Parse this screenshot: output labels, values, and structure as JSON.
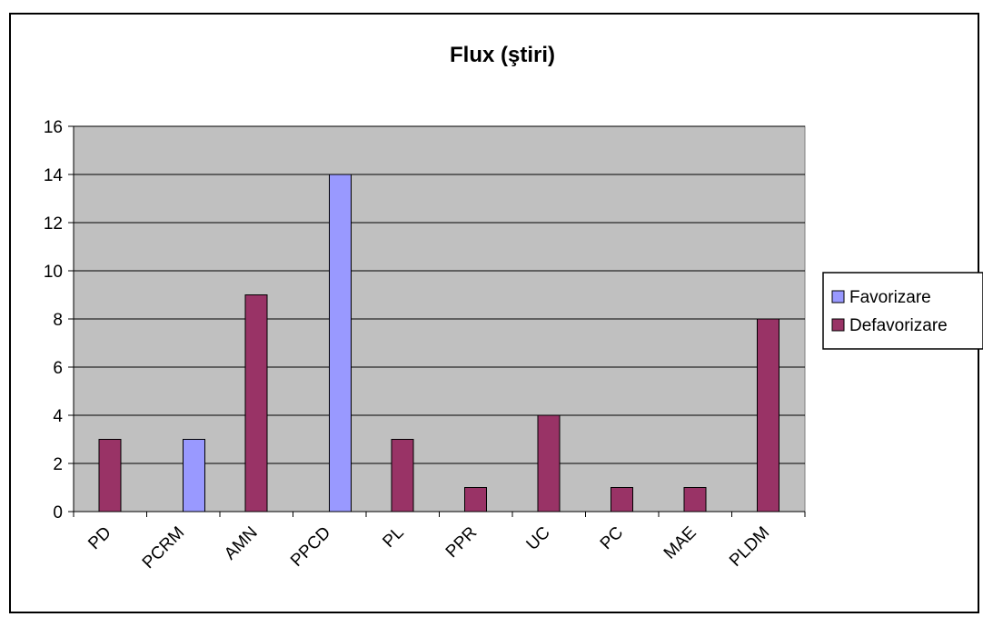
{
  "chart_data": {
    "type": "bar",
    "title": "Flux (ştiri)",
    "xlabel": "",
    "ylabel": "",
    "categories": [
      "PD",
      "PCRM",
      "AMN",
      "PPCD",
      "PL",
      "PPR",
      "UC",
      "PC",
      "MAE",
      "PLDM"
    ],
    "series": [
      {
        "name": "Favorizare",
        "values": [
          0,
          3,
          0,
          14,
          0,
          0,
          0,
          0,
          0,
          0
        ]
      },
      {
        "name": "Defavorizare",
        "values": [
          3,
          0,
          9,
          0,
          3,
          1,
          4,
          1,
          1,
          8
        ]
      }
    ],
    "ylim": [
      0,
      16
    ],
    "yticks": [
      0,
      2,
      4,
      6,
      8,
      10,
      12,
      14,
      16
    ],
    "grid": true,
    "legend": "right",
    "colors": {
      "Favorizare": "#9999ff",
      "Defavorizare": "#993366",
      "plot_background": "#c0c0c0"
    }
  }
}
